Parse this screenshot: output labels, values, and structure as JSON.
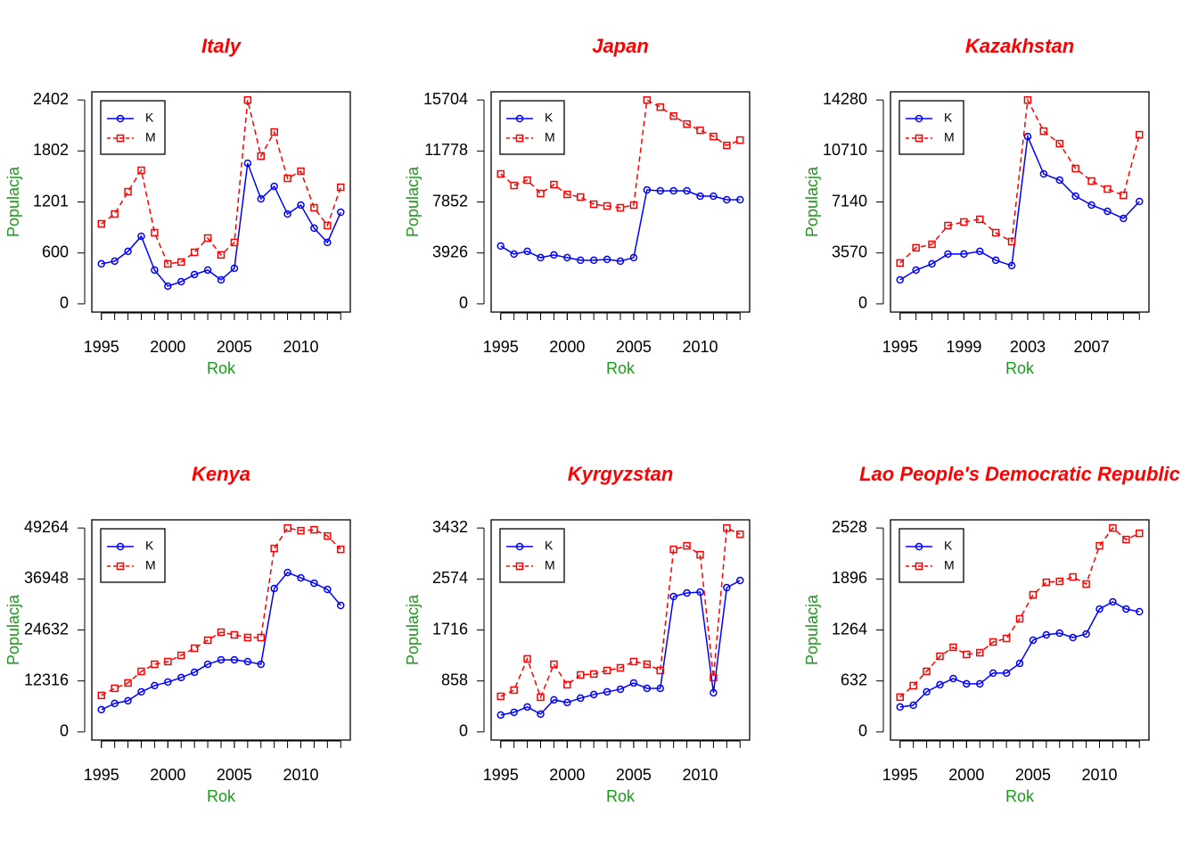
{
  "chart_data": [
    {
      "type": "line",
      "title": "Italy",
      "x_label": "Rok",
      "y_label": "Populacja",
      "legend": "topleft",
      "x": [
        1995,
        1996,
        1997,
        1998,
        1999,
        2000,
        2001,
        2002,
        2003,
        2004,
        2005,
        2006,
        2007,
        2008,
        2009,
        2010,
        2011,
        2012,
        2013
      ],
      "xlim": [
        1994.28,
        2013.72
      ],
      "xticks": [
        1995,
        2000,
        2005,
        2010
      ],
      "ylim": [
        -96.08,
        2498.08
      ],
      "yticks": [
        0,
        600,
        1201,
        1802,
        2402
      ],
      "series": [
        {
          "name": "K",
          "color": "#0000ff",
          "marker": "circle",
          "dashed": false,
          "values": [
            472,
            504,
            619,
            797,
            399,
            210,
            262,
            346,
            399,
            283,
            420,
            1657,
            1238,
            1385,
            1059,
            1164,
            892,
            724,
            1080
          ]
        },
        {
          "name": "M",
          "color": "#ff0000",
          "marker": "square",
          "dashed": true,
          "values": [
            944,
            1059,
            1322,
            1574,
            839,
            472,
            493,
            608,
            776,
            577,
            724,
            2402,
            1741,
            2025,
            1479,
            1563,
            1133,
            923,
            1374
          ]
        }
      ]
    },
    {
      "type": "line",
      "title": "Japan",
      "x_label": "Rok",
      "y_label": "Populacja",
      "legend": "topleft",
      "x": [
        1995,
        1996,
        1997,
        1998,
        1999,
        2000,
        2001,
        2002,
        2003,
        2004,
        2005,
        2006,
        2007,
        2008,
        2009,
        2010,
        2011,
        2012,
        2013
      ],
      "xlim": [
        1994.28,
        2013.72
      ],
      "xticks": [
        1995,
        2000,
        2005,
        2010
      ],
      "ylim": [
        -628.16,
        16332.16
      ],
      "yticks": [
        0,
        3926,
        7852,
        11778,
        15704
      ],
      "series": [
        {
          "name": "K",
          "color": "#0000ff",
          "marker": "circle",
          "dashed": false,
          "values": [
            4458,
            3840,
            4046,
            3566,
            3772,
            3566,
            3360,
            3360,
            3429,
            3292,
            3566,
            8778,
            8710,
            8710,
            8710,
            8298,
            8298,
            8024,
            8024
          ]
        },
        {
          "name": "M",
          "color": "#ff0000",
          "marker": "square",
          "dashed": true,
          "values": [
            10013,
            9121,
            9533,
            8504,
            9190,
            8435,
            8230,
            7681,
            7544,
            7407,
            7612,
            15704,
            15156,
            14470,
            13853,
            13373,
            12893,
            12207,
            12619
          ]
        }
      ]
    },
    {
      "type": "line",
      "title": "Kazakhstan",
      "x_label": "Rok",
      "y_label": "Populacja",
      "legend": "topleft",
      "x": [
        1995,
        1996,
        1997,
        1998,
        1999,
        2000,
        2001,
        2002,
        2003,
        2004,
        2005,
        2006,
        2007,
        2008,
        2009,
        2010
      ],
      "xlim": [
        1994.4,
        2010.6
      ],
      "xticks": [
        1995,
        1999,
        2003,
        2007
      ],
      "ylim": [
        -571.2,
        14851.2
      ],
      "yticks": [
        0,
        3570,
        7140,
        10710,
        14280
      ],
      "series": [
        {
          "name": "K",
          "color": "#0000ff",
          "marker": "circle",
          "dashed": false,
          "values": [
            1684,
            2370,
            2806,
            3492,
            3492,
            3679,
            3056,
            2681,
            11724,
            9105,
            8668,
            7546,
            6922,
            6485,
            5987,
            7171
          ]
        },
        {
          "name": "M",
          "color": "#ff0000",
          "marker": "square",
          "dashed": true,
          "values": [
            2869,
            3929,
            4178,
            5488,
            5737,
            5924,
            4989,
            4365,
            14280,
            12098,
            11225,
            9479,
            8606,
            8044,
            7608,
            11848
          ]
        }
      ]
    },
    {
      "type": "line",
      "title": "Kenya",
      "x_label": "Rok",
      "y_label": "Populacja",
      "legend": "topleft",
      "x": [
        1995,
        1996,
        1997,
        1998,
        1999,
        2000,
        2001,
        2002,
        2003,
        2004,
        2005,
        2006,
        2007,
        2008,
        2009,
        2010,
        2011,
        2012,
        2013
      ],
      "xlim": [
        1994.28,
        2013.72
      ],
      "xticks": [
        1995,
        2000,
        2005,
        2010
      ],
      "ylim": [
        -1970.56,
        51234.56
      ],
      "yticks": [
        0,
        12316,
        24632,
        36948,
        49264
      ],
      "series": [
        {
          "name": "K",
          "color": "#0000ff",
          "marker": "circle",
          "dashed": false,
          "values": [
            5378,
            6884,
            7530,
            9681,
            11187,
            12047,
            13123,
            14414,
            16350,
            17426,
            17426,
            16995,
            16350,
            34636,
            38508,
            37217,
            35927,
            34421,
            30548
          ]
        },
        {
          "name": "M",
          "color": "#ff0000",
          "marker": "square",
          "dashed": true,
          "values": [
            8820,
            10541,
            11832,
            14629,
            16350,
            16995,
            18501,
            20222,
            22158,
            24095,
            23449,
            22804,
            22804,
            44317,
            49264,
            48619,
            48834,
            47328,
            44102
          ]
        }
      ]
    },
    {
      "type": "line",
      "title": "Kyrgyzstan",
      "x_label": "Rok",
      "y_label": "Populacja",
      "legend": "topleft",
      "x": [
        1995,
        1996,
        1997,
        1998,
        1999,
        2000,
        2001,
        2002,
        2003,
        2004,
        2005,
        2006,
        2007,
        2008,
        2009,
        2010,
        2011,
        2012,
        2013
      ],
      "xlim": [
        1994.28,
        2013.72
      ],
      "xticks": [
        1995,
        2000,
        2005,
        2010
      ],
      "ylim": [
        -137.28,
        3569.28
      ],
      "yticks": [
        0,
        858,
        1716,
        2574,
        3432
      ],
      "series": [
        {
          "name": "K",
          "color": "#0000ff",
          "marker": "circle",
          "dashed": false,
          "values": [
            285,
            330,
            420,
            300,
            540,
            495,
            569,
            629,
            674,
            719,
            824,
            734,
            734,
            2278,
            2338,
            2353,
            659,
            2428,
            2548
          ]
        },
        {
          "name": "M",
          "color": "#ff0000",
          "marker": "square",
          "dashed": true,
          "values": [
            599,
            704,
            1229,
            584,
            1139,
            794,
            959,
            974,
            1034,
            1079,
            1184,
            1139,
            1034,
            3072,
            3132,
            2982,
            914,
            3432,
            3327
          ]
        }
      ]
    },
    {
      "type": "line",
      "title": "Lao People's Democratic Republic",
      "x_label": "Rok",
      "y_label": "Populacja",
      "legend": "topleft",
      "x": [
        1995,
        1996,
        1997,
        1998,
        1999,
        2000,
        2001,
        2002,
        2003,
        2004,
        2005,
        2006,
        2007,
        2008,
        2009,
        2010,
        2011,
        2012,
        2013
      ],
      "xlim": [
        1994.28,
        2013.72
      ],
      "xticks": [
        1995,
        2000,
        2005,
        2010
      ],
      "ylim": [
        -101.12,
        2629.12
      ],
      "yticks": [
        0,
        632,
        1264,
        1896,
        2528
      ],
      "series": [
        {
          "name": "K",
          "color": "#0000ff",
          "marker": "circle",
          "dashed": false,
          "values": [
            309,
            331,
            497,
            585,
            662,
            596,
            596,
            729,
            729,
            850,
            1137,
            1203,
            1225,
            1170,
            1214,
            1524,
            1612,
            1524,
            1490
          ]
        },
        {
          "name": "M",
          "color": "#ff0000",
          "marker": "square",
          "dashed": true,
          "values": [
            431,
            574,
            751,
            938,
            1049,
            960,
            982,
            1115,
            1159,
            1402,
            1700,
            1855,
            1866,
            1921,
            1833,
            2307,
            2528,
            2385,
            2462
          ]
        }
      ]
    }
  ]
}
